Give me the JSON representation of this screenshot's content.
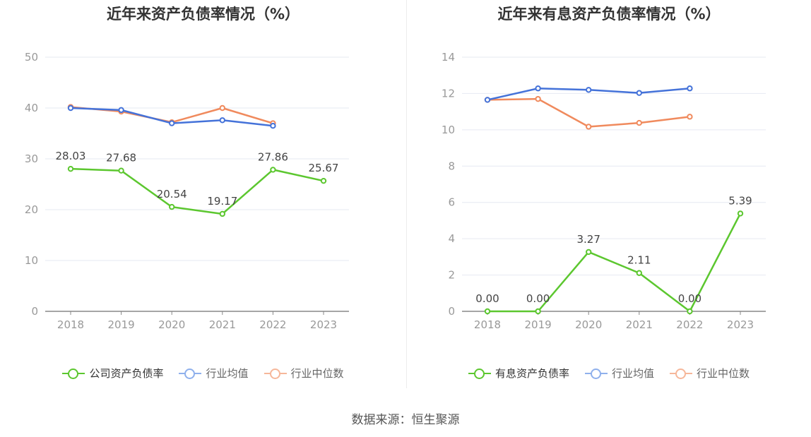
{
  "source": "数据来源：恒生聚源",
  "colors": {
    "company": "#5cc72f",
    "average": "#4472d9",
    "median": "#f08a5d"
  },
  "chart_data": [
    {
      "type": "line",
      "title": "近年来资产负债率情况（%）",
      "categories": [
        "2018",
        "2019",
        "2020",
        "2021",
        "2022",
        "2023"
      ],
      "ylim": [
        0,
        50
      ],
      "yticks": [
        0,
        10,
        20,
        30,
        40,
        50
      ],
      "grid": true,
      "legend_position": "bottom",
      "series": [
        {
          "name": "公司资产负债率",
          "values": [
            28.03,
            27.68,
            20.54,
            19.17,
            27.86,
            25.67
          ],
          "labels": [
            "28.03",
            "27.68",
            "20.54",
            "19.17",
            "27.86",
            "25.67"
          ],
          "color": "#5cc72f"
        },
        {
          "name": "行业均值",
          "values": [
            40.0,
            39.6,
            37.0,
            37.6,
            36.5,
            null
          ],
          "color": "#4472d9"
        },
        {
          "name": "行业中位数",
          "values": [
            40.2,
            39.3,
            37.2,
            40.0,
            37.0,
            null
          ],
          "color": "#f08a5d"
        }
      ]
    },
    {
      "type": "line",
      "title": "近年来有息资产负债率情况（%）",
      "categories": [
        "2018",
        "2019",
        "2020",
        "2021",
        "2022",
        "2023"
      ],
      "ylim": [
        0,
        14
      ],
      "yticks": [
        0,
        2,
        4,
        6,
        8,
        10,
        12,
        14
      ],
      "grid": true,
      "legend_position": "bottom",
      "series": [
        {
          "name": "有息资产负债率",
          "values": [
            0.0,
            0.0,
            3.27,
            2.11,
            0.0,
            5.39
          ],
          "labels": [
            "0.00",
            "0.00",
            "3.27",
            "2.11",
            "0.00",
            "5.39"
          ],
          "color": "#5cc72f"
        },
        {
          "name": "行业均值",
          "values": [
            11.65,
            12.28,
            12.2,
            12.03,
            12.28,
            null
          ],
          "color": "#4472d9"
        },
        {
          "name": "行业中位数",
          "values": [
            11.65,
            11.7,
            10.17,
            10.38,
            10.72,
            null
          ],
          "color": "#f08a5d"
        }
      ]
    }
  ]
}
